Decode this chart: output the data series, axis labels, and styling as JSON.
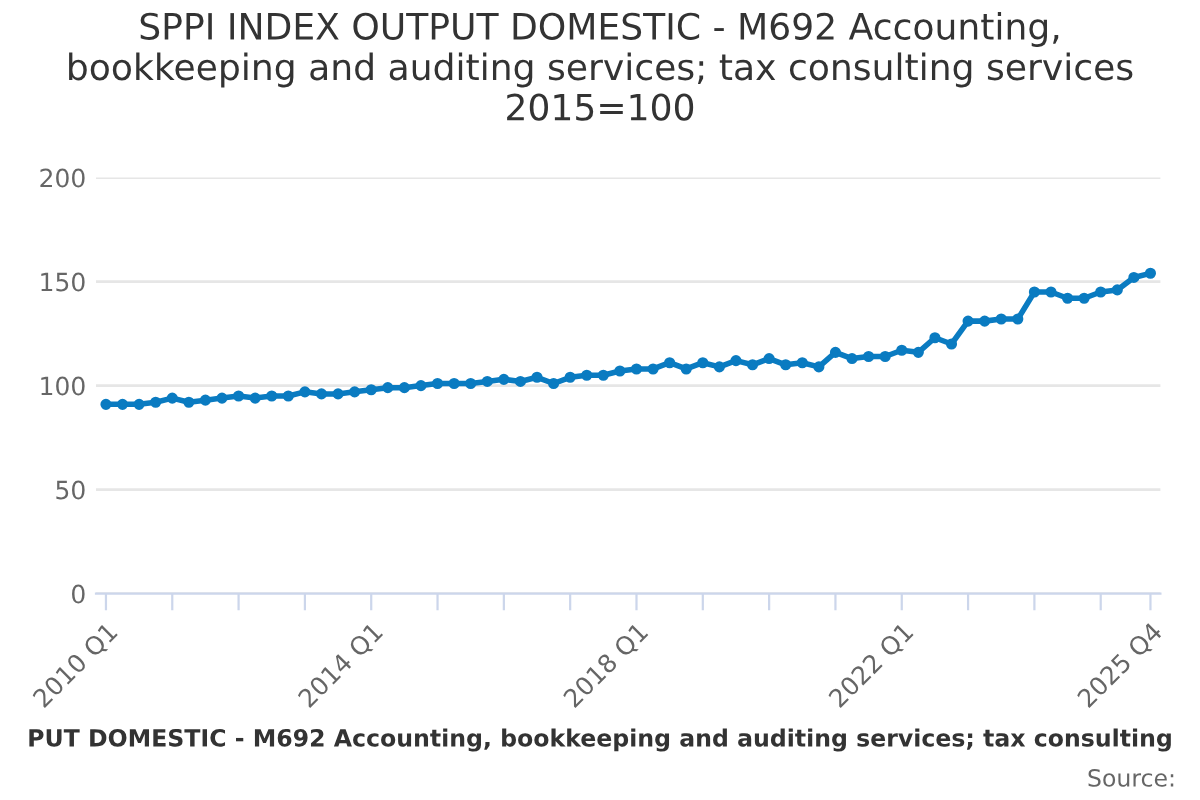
{
  "chart_data": {
    "type": "line",
    "title": "SPPI INDEX OUTPUT DOMESTIC - M692 Accounting,\nbookkeeping and auditing services; tax consulting services\n2015=100",
    "categories": [
      "2010 Q1",
      null,
      null,
      null,
      null,
      null,
      null,
      null,
      null,
      null,
      null,
      null,
      null,
      null,
      null,
      null,
      "2014 Q1",
      null,
      null,
      null,
      null,
      null,
      null,
      null,
      null,
      null,
      null,
      null,
      null,
      null,
      null,
      null,
      "2018 Q1",
      null,
      null,
      null,
      null,
      null,
      null,
      null,
      null,
      null,
      null,
      null,
      null,
      null,
      null,
      null,
      "2022 Q1",
      null,
      null,
      null,
      null,
      null,
      null,
      null,
      null,
      null,
      null,
      null,
      null,
      null,
      null,
      "2025 Q4"
    ],
    "series": [
      {
        "color": "#0a7bc1",
        "values": [
          91,
          91,
          91,
          92,
          94,
          92,
          93,
          94,
          95,
          94,
          95,
          95,
          97,
          96,
          96,
          97,
          98,
          99,
          99,
          100,
          101,
          101,
          101,
          102,
          103,
          102,
          104,
          101,
          104,
          105,
          105,
          107,
          108,
          108,
          111,
          108,
          111,
          109,
          112,
          110,
          113,
          110,
          111,
          109,
          116,
          113,
          114,
          114,
          117,
          116,
          123,
          120,
          131,
          131,
          132,
          132,
          145,
          145,
          142,
          142,
          145,
          146,
          152,
          154
        ]
      }
    ],
    "ylim": [
      0,
      200
    ],
    "yticks": [
      0,
      50,
      100,
      150,
      200
    ],
    "grid": "y",
    "marker": "circle",
    "line_style": "solid",
    "annotations": [
      "PUT DOMESTIC - M692 Accounting, bookkeeping and auditing services; tax consulting",
      "Source:"
    ]
  }
}
